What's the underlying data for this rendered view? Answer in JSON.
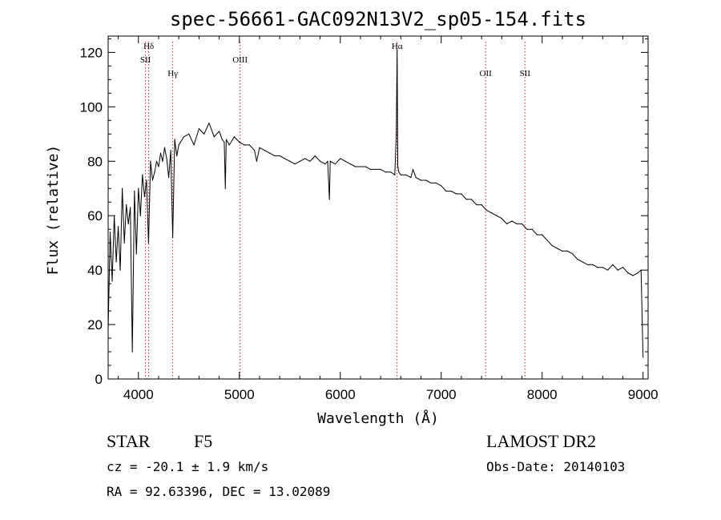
{
  "chart_data": {
    "type": "line",
    "title": "spec-56661-GAC092N13V2_sp05-154.fits",
    "xlabel": "Wavelength (Å)",
    "ylabel": "Flux (relative)",
    "xlim": [
      3700,
      9050
    ],
    "ylim": [
      0,
      126
    ],
    "xticks": [
      4000,
      5000,
      6000,
      7000,
      8000,
      9000
    ],
    "yticks": [
      0,
      20,
      40,
      60,
      80,
      100,
      120
    ],
    "grid": false,
    "series": [
      {
        "color": "#000000",
        "x": [
          3700,
          3720,
          3740,
          3760,
          3780,
          3800,
          3820,
          3840,
          3860,
          3880,
          3900,
          3920,
          3940,
          3960,
          3980,
          4000,
          4020,
          4040,
          4060,
          4080,
          4100,
          4120,
          4140,
          4160,
          4180,
          4200,
          4220,
          4240,
          4260,
          4280,
          4300,
          4320,
          4340,
          4360,
          4380,
          4400,
          4450,
          4500,
          4550,
          4600,
          4650,
          4700,
          4750,
          4800,
          4830,
          4850,
          4861,
          4870,
          4900,
          4950,
          5000,
          5050,
          5100,
          5150,
          5172,
          5200,
          5250,
          5300,
          5350,
          5400,
          5450,
          5500,
          5550,
          5600,
          5650,
          5700,
          5750,
          5800,
          5850,
          5875,
          5892,
          5900,
          5950,
          6000,
          6050,
          6100,
          6150,
          6200,
          6250,
          6300,
          6350,
          6400,
          6450,
          6500,
          6540,
          6555,
          6563,
          6570,
          6580,
          6600,
          6650,
          6700,
          6720,
          6750,
          6800,
          6850,
          6900,
          6950,
          7000,
          7050,
          7100,
          7150,
          7200,
          7250,
          7300,
          7350,
          7400,
          7450,
          7500,
          7550,
          7600,
          7650,
          7700,
          7750,
          7800,
          7850,
          7900,
          7950,
          8000,
          8050,
          8100,
          8150,
          8200,
          8250,
          8300,
          8350,
          8400,
          8450,
          8500,
          8550,
          8600,
          8650,
          8700,
          8750,
          8800,
          8850,
          8900,
          8950,
          8980,
          9000
        ],
        "y": [
          18,
          54,
          36,
          60,
          43,
          56,
          40,
          70,
          50,
          64,
          57,
          63,
          10,
          69,
          46,
          70,
          60,
          75,
          67,
          73,
          50,
          80,
          73,
          76,
          80,
          78,
          83,
          80,
          85,
          81,
          74,
          84,
          52,
          88,
          82,
          86,
          89,
          90,
          86,
          92,
          90,
          94,
          89,
          91,
          88,
          87,
          70,
          88,
          86,
          89,
          87,
          86,
          86,
          84,
          80,
          85,
          84,
          83,
          82,
          82,
          81,
          80,
          79,
          80,
          81,
          80,
          82,
          80,
          79,
          80,
          66,
          80,
          79,
          81,
          80,
          79,
          78,
          78,
          78,
          77,
          77,
          77,
          76,
          76,
          75,
          90,
          121,
          78,
          76,
          75,
          75,
          74,
          77,
          74,
          73,
          73,
          72,
          72,
          71,
          69,
          69,
          68,
          68,
          66,
          66,
          64,
          64,
          62,
          61,
          60,
          59,
          57,
          58,
          57,
          57,
          55,
          55,
          53,
          53,
          51,
          49,
          48,
          47,
          47,
          46,
          44,
          43,
          42,
          42,
          41,
          41,
          40,
          42,
          40,
          41,
          39,
          38,
          39,
          40,
          8
        ]
      }
    ],
    "line_markers": [
      {
        "label": "Hδ",
        "x": 4102,
        "row": 0
      },
      {
        "label": "SII",
        "x": 4070,
        "row": 1
      },
      {
        "label": "Hγ",
        "x": 4340,
        "row": 2
      },
      {
        "label": "OIII",
        "x": 5007,
        "row": 1
      },
      {
        "label": "Hα",
        "x": 6563,
        "row": 0
      },
      {
        "label": "OII",
        "x": 7440,
        "row": 2
      },
      {
        "label": "SII",
        "x": 7830,
        "row": 2
      }
    ],
    "marker_color": "#c62828"
  },
  "info": {
    "class_label": "STAR",
    "subclass_label": "F5",
    "survey_label": "LAMOST DR2",
    "cz_text": "cz = -20.1 ± 1.9 km/s",
    "obs_date_text": "Obs-Date: 20140103",
    "coords_text": "RA =  92.63396, DEC =  13.02089"
  }
}
